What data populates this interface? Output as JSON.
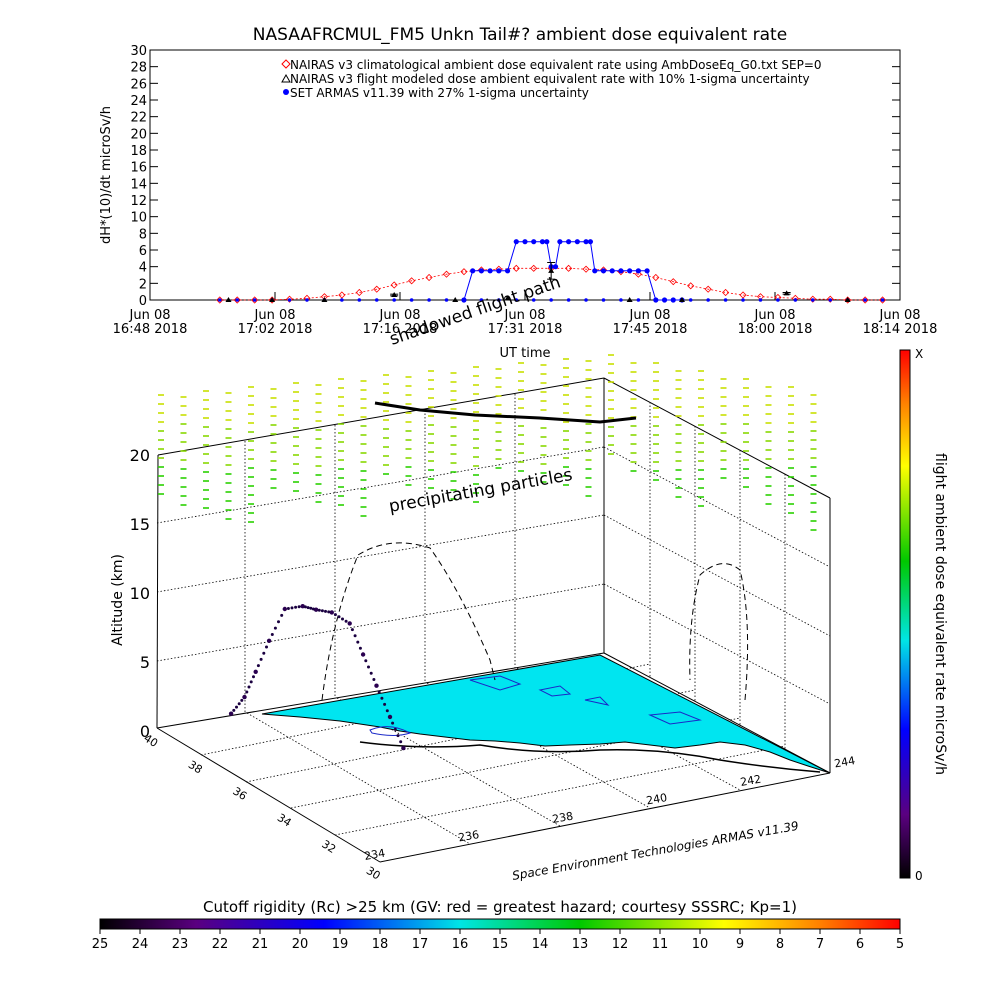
{
  "chart_data": [
    {
      "type": "line",
      "title": "NASAAFRCMUL_FM5 Unkn Tail#? ambient dose equivalent rate",
      "xlabel": "UT time",
      "ylabel": "dH*(10)/dt microSv/h",
      "ylim": [
        0,
        30
      ],
      "y_ticks": [
        "0",
        "2",
        "4",
        "6",
        "8",
        "10",
        "12",
        "14",
        "16",
        "18",
        "20",
        "22",
        "24",
        "26",
        "28",
        "30"
      ],
      "x_ticks": [
        {
          "top": "Jun 08",
          "bottom": "16:48 2018"
        },
        {
          "top": "Jun 08",
          "bottom": "17:02 2018"
        },
        {
          "top": "Jun 08",
          "bottom": "17:16 2018"
        },
        {
          "top": "Jun 08",
          "bottom": "17:31 2018"
        },
        {
          "top": "Jun 08",
          "bottom": "17:45 2018"
        },
        {
          "top": "Jun 08",
          "bottom": "18:00 2018"
        },
        {
          "top": "Jun 08",
          "bottom": "18:14 2018"
        }
      ],
      "xlim_minutes": [
        0,
        86
      ],
      "legend_position": "top-right",
      "legend": [
        "NAIRAS v3 climatological ambient dose equivalent rate using AmbDoseEq_G0.txt SEP=0",
        "NAIRAS v3 flight modeled dose ambient equivalent rate with 10% 1-sigma uncertainty",
        "SET ARMAS v11.39 with 27% 1-sigma uncertainty"
      ],
      "series": [
        {
          "name": "NAIRAS v3 climatological ambient dose equivalent rate using AmbDoseEq_G0.txt SEP=0",
          "color": "#ff0000",
          "marker": "diamond",
          "x_minutes": [
            8,
            10,
            12,
            14,
            16,
            18,
            20,
            22,
            24,
            26,
            28,
            30,
            32,
            34,
            36,
            38,
            40,
            42,
            44,
            46,
            48,
            50,
            52,
            54,
            56,
            58,
            60,
            62,
            64,
            66,
            68,
            70,
            72,
            74,
            76,
            78,
            80,
            82,
            84
          ],
          "values": [
            0,
            0,
            0,
            0,
            0.1,
            0.2,
            0.4,
            0.6,
            0.9,
            1.3,
            1.8,
            2.3,
            2.7,
            3.1,
            3.4,
            3.6,
            3.7,
            3.8,
            3.8,
            3.8,
            3.8,
            3.7,
            3.6,
            3.4,
            3.1,
            2.7,
            2.2,
            1.7,
            1.3,
            0.9,
            0.6,
            0.4,
            0.3,
            0.2,
            0.1,
            0.1,
            0,
            0,
            0
          ]
        },
        {
          "name": "NAIRAS v3 flight modeled dose ambient equivalent rate with 10% 1-sigma uncertainty",
          "color": "#000000",
          "marker": "triangle",
          "x_minutes": [
            9,
            14,
            20,
            28,
            35,
            41,
            46,
            55,
            61,
            73,
            80
          ],
          "values": [
            0,
            0,
            0,
            0.6,
            0,
            0.2,
            3.5,
            0,
            0,
            0.8,
            0
          ],
          "error": [
            0,
            0,
            0,
            0.1,
            0,
            0,
            1.0,
            0,
            0,
            0.1,
            0
          ]
        },
        {
          "name": "SET ARMAS v11.39 with 27% 1-sigma uncertainty",
          "color": "#0000ff",
          "marker": "circle",
          "x_minutes": [
            36,
            37,
            38,
            39,
            40,
            41,
            42,
            43,
            44,
            45,
            45.5,
            46,
            46.5,
            47,
            48,
            49,
            50,
            50.5,
            51,
            52,
            53,
            54,
            55,
            56,
            57,
            58,
            59,
            60,
            61
          ],
          "values": [
            0,
            3.5,
            3.5,
            3.5,
            3.5,
            3.5,
            7,
            7,
            7,
            7,
            7,
            4,
            4,
            7,
            7,
            7,
            7,
            7,
            3.5,
            3.5,
            3.5,
            3.5,
            3.5,
            3.5,
            3.5,
            0,
            0,
            0,
            0
          ]
        }
      ]
    },
    {
      "type": "other",
      "kind": "3d-trajectory",
      "zlabel": "Altitude (km)",
      "z_ticks": [
        "0",
        "5",
        "10",
        "15",
        "20"
      ],
      "lat_ticks": [
        "40",
        "38",
        "36",
        "34",
        "32",
        "30"
      ],
      "lon_ticks": [
        "234",
        "236",
        "238",
        "240",
        "242",
        "244"
      ],
      "annotations": [
        "precipitating particles",
        "shadowed flight path"
      ],
      "credit": "Space Environment Technologies ARMAS v11.39",
      "flight_path": {
        "lon": [
          236.5,
          236.8,
          237.0,
          237.2,
          237.5,
          237.8,
          238.0,
          238.3,
          238.6,
          238.8,
          239.0,
          239.2,
          239.4
        ],
        "lat": [
          39.2,
          38.9,
          38.6,
          38.2,
          37.8,
          37.3,
          36.9,
          36.5,
          36.0,
          35.6,
          35.2,
          34.8,
          34.4
        ],
        "alt_km": [
          0.2,
          1.5,
          3.5,
          6.0,
          8.5,
          9.0,
          9.0,
          9.0,
          8.5,
          6.5,
          4.5,
          2.5,
          0.5
        ]
      }
    },
    {
      "type": "colorbar",
      "label": "flight ambient dose equivalent rate microSv/h",
      "max_label": "X",
      "min_label": "0"
    },
    {
      "type": "colorbar",
      "label": "Cutoff rigidity (Rc) >25 km (GV: red = greatest hazard; courtesy SSSRC; Kp=1)",
      "ticks": [
        "25",
        "24",
        "23",
        "22",
        "21",
        "20",
        "19",
        "18",
        "17",
        "16",
        "15",
        "14",
        "13",
        "12",
        "11",
        "10",
        "9",
        "8",
        "7",
        "6",
        "5"
      ]
    }
  ]
}
